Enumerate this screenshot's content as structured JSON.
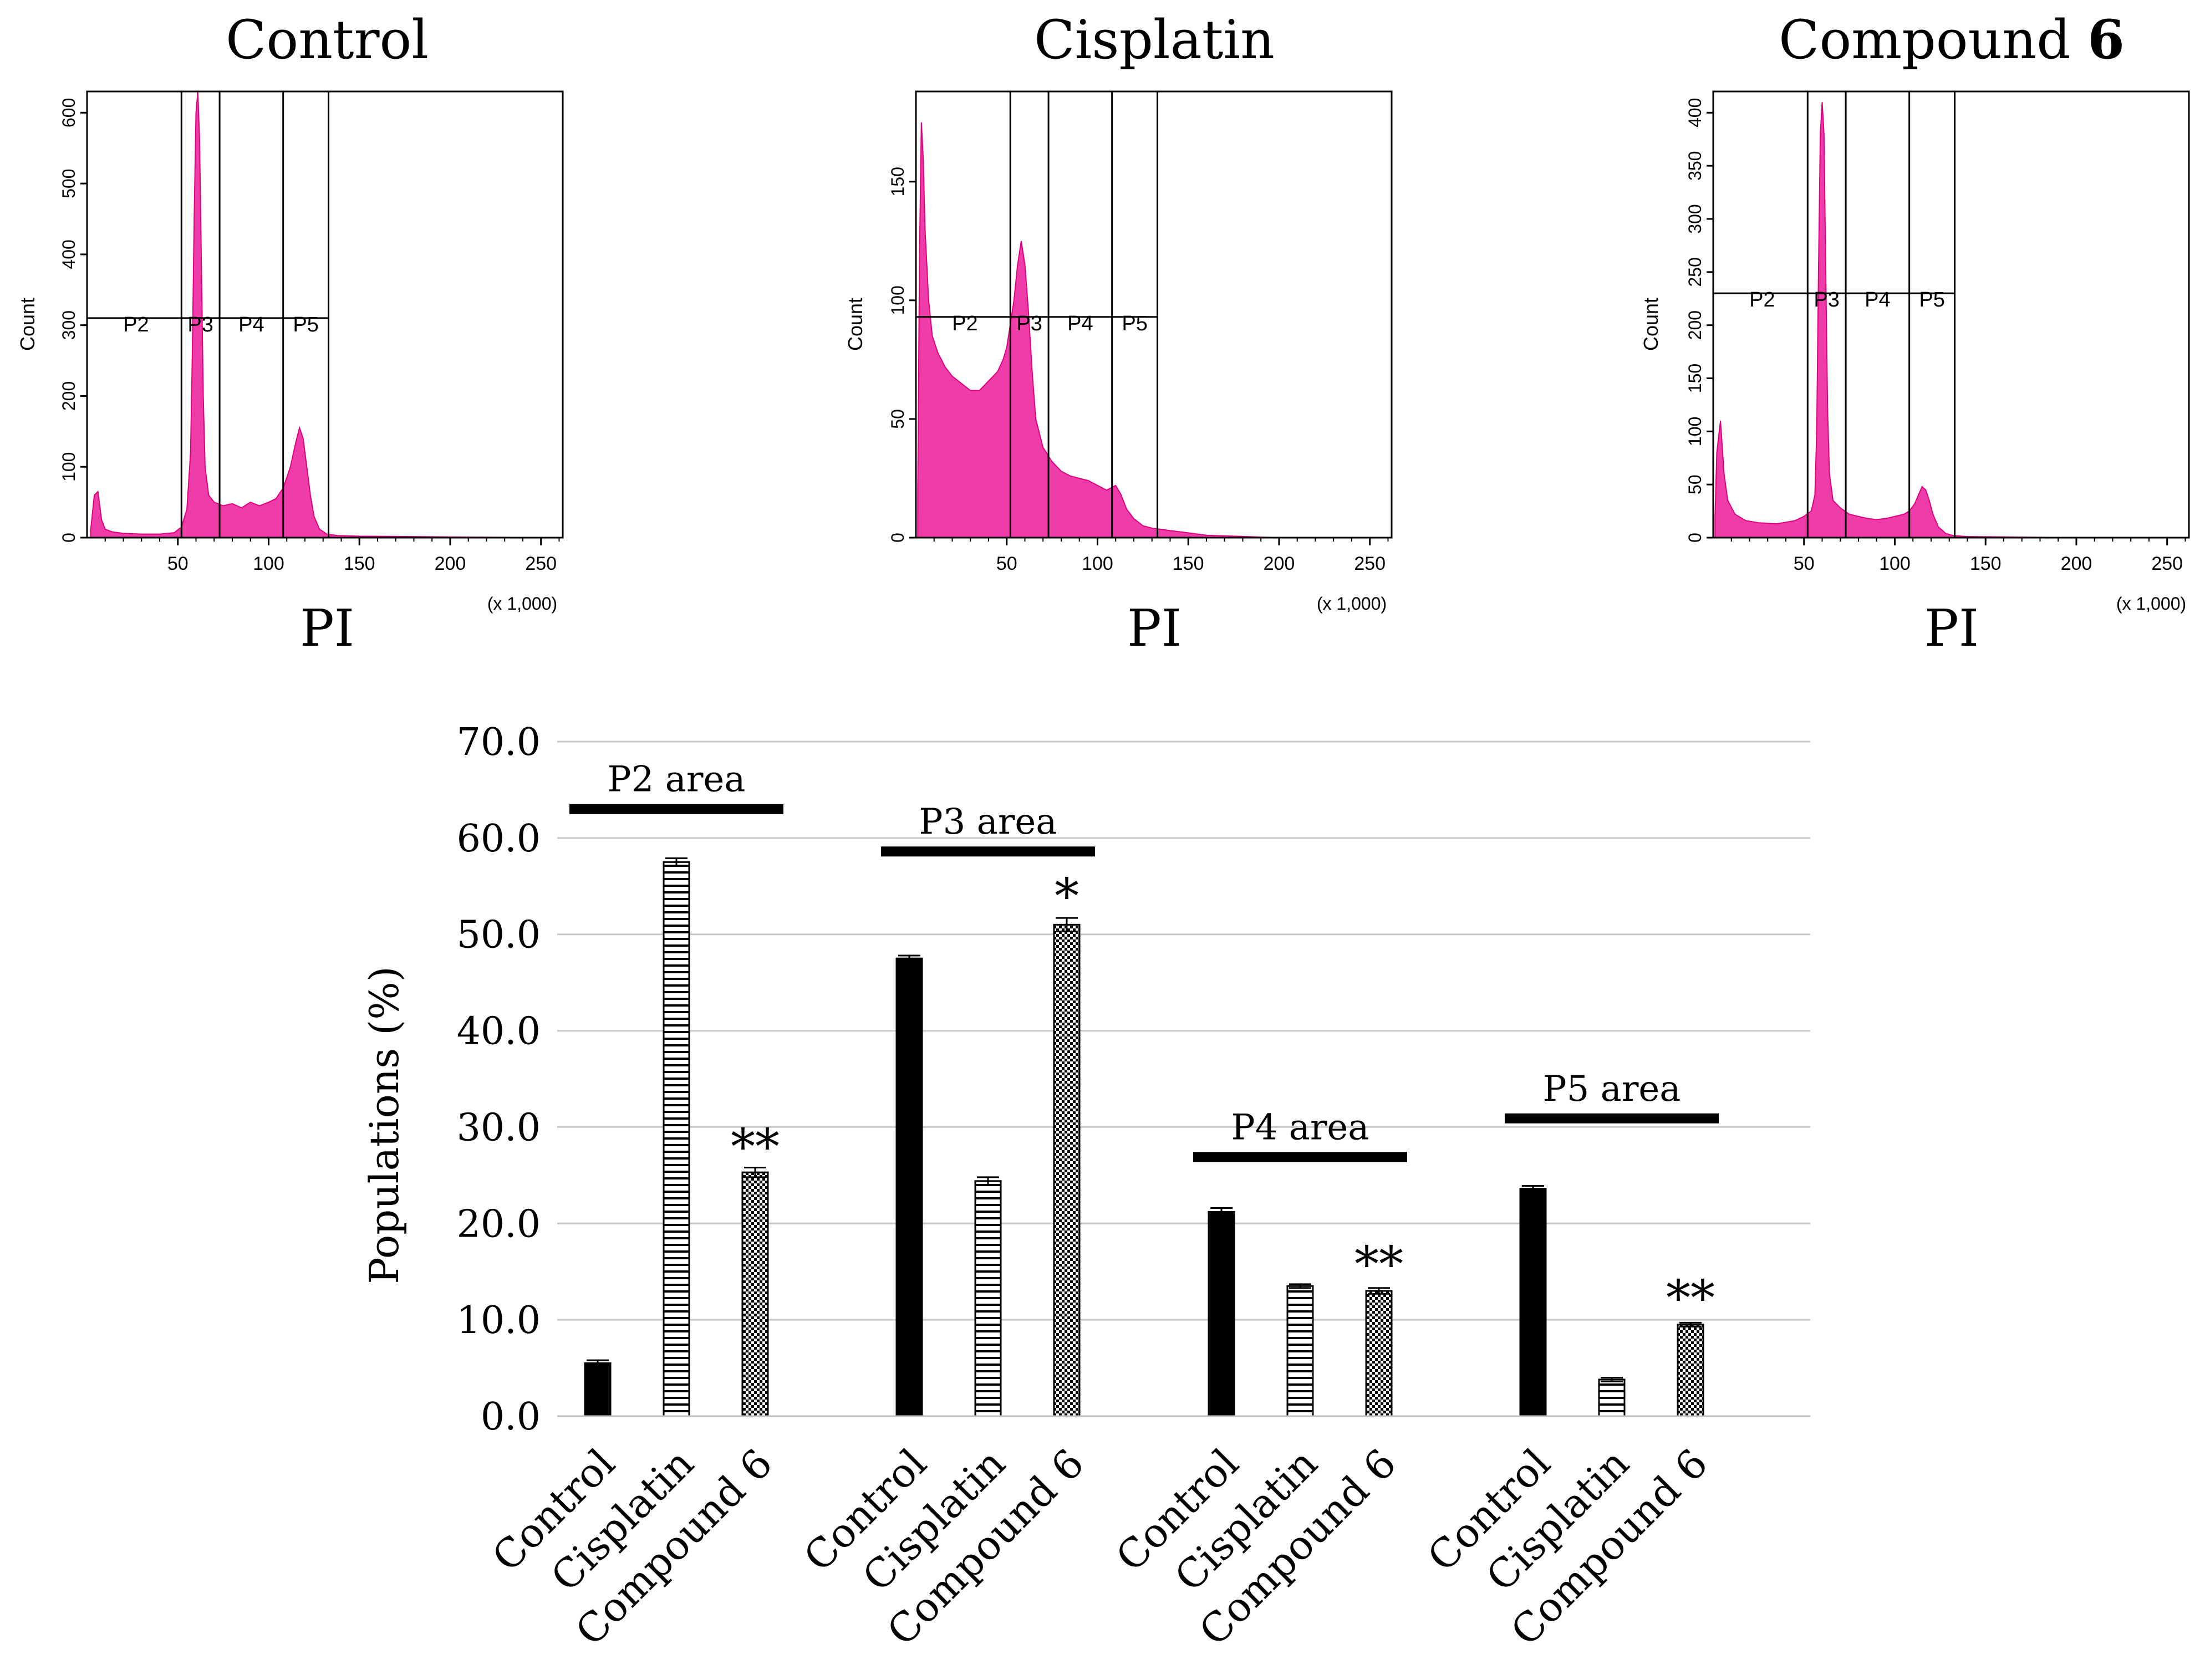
{
  "colors": {
    "histogram_fill": "#ee3ca8",
    "histogram_edge": "#e0007f",
    "axis": "#000000",
    "bar_control": "#000000",
    "bar_pattern": "#000000",
    "grid": "#c8c8c8"
  },
  "histograms": [
    {
      "title": "Control",
      "xlabel": "PI",
      "ylabel": "Count",
      "x_unit": "(x 1,000)",
      "xlim": [
        0,
        262
      ],
      "ylim": [
        0,
        630
      ],
      "xticks": [
        "50",
        "100",
        "150",
        "200",
        "250"
      ],
      "xtick_values": [
        50,
        100,
        150,
        200,
        250
      ],
      "yticks": [
        "0",
        "100",
        "200",
        "300",
        "400",
        "500",
        "600"
      ],
      "ytick_values": [
        0,
        100,
        200,
        300,
        400,
        500,
        600
      ],
      "gates": [
        52,
        73,
        108,
        133
      ],
      "gate_labels": [
        "P2",
        "P3",
        "P4",
        "P5"
      ],
      "gate_level": 310,
      "curve": [
        [
          2,
          10
        ],
        [
          4,
          60
        ],
        [
          6,
          65
        ],
        [
          8,
          25
        ],
        [
          10,
          12
        ],
        [
          14,
          8
        ],
        [
          20,
          6
        ],
        [
          30,
          5
        ],
        [
          40,
          5
        ],
        [
          48,
          7
        ],
        [
          52,
          15
        ],
        [
          55,
          40
        ],
        [
          57,
          120
        ],
        [
          58,
          260
        ],
        [
          59,
          450
        ],
        [
          60,
          600
        ],
        [
          61,
          630
        ],
        [
          62,
          560
        ],
        [
          63,
          380
        ],
        [
          64,
          200
        ],
        [
          65,
          100
        ],
        [
          67,
          60
        ],
        [
          70,
          50
        ],
        [
          75,
          45
        ],
        [
          80,
          48
        ],
        [
          85,
          42
        ],
        [
          90,
          50
        ],
        [
          95,
          45
        ],
        [
          100,
          50
        ],
        [
          104,
          55
        ],
        [
          108,
          70
        ],
        [
          112,
          100
        ],
        [
          115,
          135
        ],
        [
          117,
          155
        ],
        [
          119,
          140
        ],
        [
          121,
          100
        ],
        [
          123,
          60
        ],
        [
          125,
          30
        ],
        [
          128,
          12
        ],
        [
          132,
          5
        ],
        [
          138,
          3
        ],
        [
          150,
          2
        ],
        [
          200,
          1
        ],
        [
          260,
          0
        ]
      ]
    },
    {
      "title": "Cisplatin",
      "xlabel": "PI",
      "ylabel": "Count",
      "x_unit": "(x 1,000)",
      "xlim": [
        0,
        262
      ],
      "ylim": [
        0,
        188
      ],
      "xticks": [
        "50",
        "100",
        "150",
        "200",
        "250"
      ],
      "xtick_values": [
        50,
        100,
        150,
        200,
        250
      ],
      "yticks": [
        "0",
        "50",
        "100",
        "150"
      ],
      "ytick_values": [
        0,
        50,
        100,
        150
      ],
      "gates": [
        52,
        73,
        108,
        133
      ],
      "gate_labels": [
        "P2",
        "P3",
        "P4",
        "P5"
      ],
      "gate_level": 93,
      "curve": [
        [
          1,
          20
        ],
        [
          2,
          120
        ],
        [
          3,
          175
        ],
        [
          4,
          160
        ],
        [
          5,
          130
        ],
        [
          7,
          100
        ],
        [
          9,
          85
        ],
        [
          12,
          78
        ],
        [
          16,
          72
        ],
        [
          20,
          68
        ],
        [
          25,
          65
        ],
        [
          30,
          62
        ],
        [
          35,
          62
        ],
        [
          40,
          66
        ],
        [
          45,
          70
        ],
        [
          48,
          75
        ],
        [
          50,
          80
        ],
        [
          52,
          90
        ],
        [
          54,
          100
        ],
        [
          56,
          115
        ],
        [
          58,
          125
        ],
        [
          60,
          115
        ],
        [
          62,
          95
        ],
        [
          64,
          70
        ],
        [
          66,
          50
        ],
        [
          70,
          38
        ],
        [
          75,
          32
        ],
        [
          80,
          28
        ],
        [
          85,
          26
        ],
        [
          90,
          25
        ],
        [
          95,
          24
        ],
        [
          100,
          22
        ],
        [
          105,
          20
        ],
        [
          110,
          22
        ],
        [
          113,
          18
        ],
        [
          116,
          12
        ],
        [
          120,
          8
        ],
        [
          125,
          5
        ],
        [
          130,
          4
        ],
        [
          140,
          3
        ],
        [
          150,
          2
        ],
        [
          160,
          1
        ],
        [
          200,
          0
        ],
        [
          260,
          0
        ]
      ]
    },
    {
      "title": "Compound ",
      "title_bold": "6",
      "xlabel": "PI",
      "ylabel": "Count",
      "x_unit": "(x 1,000)",
      "xlim": [
        0,
        262
      ],
      "ylim": [
        0,
        420
      ],
      "xticks": [
        "50",
        "100",
        "150",
        "200",
        "250"
      ],
      "xtick_values": [
        50,
        100,
        150,
        200,
        250
      ],
      "yticks": [
        "0",
        "50",
        "100",
        "150",
        "200",
        "250",
        "300",
        "350",
        "400"
      ],
      "ytick_values": [
        0,
        50,
        100,
        150,
        200,
        250,
        300,
        350,
        400
      ],
      "gates": [
        52,
        73,
        108,
        133
      ],
      "gate_labels": [
        "P2",
        "P3",
        "P4",
        "P5"
      ],
      "gate_level": 230,
      "curve": [
        [
          1,
          20
        ],
        [
          2,
          80
        ],
        [
          4,
          110
        ],
        [
          6,
          60
        ],
        [
          8,
          35
        ],
        [
          12,
          22
        ],
        [
          18,
          16
        ],
        [
          25,
          14
        ],
        [
          35,
          13
        ],
        [
          45,
          16
        ],
        [
          50,
          20
        ],
        [
          54,
          25
        ],
        [
          56,
          40
        ],
        [
          57,
          100
        ],
        [
          58,
          250
        ],
        [
          59,
          380
        ],
        [
          60,
          410
        ],
        [
          61,
          380
        ],
        [
          62,
          250
        ],
        [
          63,
          120
        ],
        [
          64,
          60
        ],
        [
          66,
          35
        ],
        [
          70,
          28
        ],
        [
          75,
          22
        ],
        [
          80,
          20
        ],
        [
          85,
          18
        ],
        [
          90,
          17
        ],
        [
          95,
          18
        ],
        [
          100,
          20
        ],
        [
          105,
          22
        ],
        [
          108,
          25
        ],
        [
          111,
          32
        ],
        [
          113,
          40
        ],
        [
          115,
          48
        ],
        [
          117,
          45
        ],
        [
          119,
          35
        ],
        [
          121,
          22
        ],
        [
          124,
          10
        ],
        [
          128,
          4
        ],
        [
          132,
          2
        ],
        [
          140,
          1
        ],
        [
          200,
          0
        ],
        [
          260,
          0
        ]
      ]
    }
  ],
  "chart_data": {
    "type": "bar",
    "title": "",
    "ylabel": "Populations (%)",
    "xlabel": "",
    "ylim": [
      0,
      70
    ],
    "yticks": [
      "0.0",
      "10.0",
      "20.0",
      "30.0",
      "40.0",
      "50.0",
      "60.0",
      "70.0"
    ],
    "ytick_values": [
      0,
      10,
      20,
      30,
      40,
      50,
      60,
      70
    ],
    "grid": true,
    "group_labels": [
      "P2 area",
      "P3 area",
      "P4 area",
      "P5 area"
    ],
    "group_label_values": [
      63.0,
      58.6,
      26.9,
      30.9
    ],
    "series": [
      {
        "name": "Control",
        "pattern": "solid",
        "values": [
          5.5,
          47.5,
          21.2,
          23.6
        ],
        "errors": [
          0.3,
          0.3,
          0.4,
          0.3
        ]
      },
      {
        "name": "Cisplatin",
        "pattern": "horizontal-stripes",
        "values": [
          57.5,
          24.4,
          13.5,
          3.8
        ],
        "errors": [
          0.4,
          0.4,
          0.2,
          0.2
        ]
      },
      {
        "name": "Compound 6",
        "pattern": "checker",
        "values": [
          25.3,
          51.0,
          13.0,
          9.5
        ],
        "errors": [
          0.5,
          0.7,
          0.3,
          0.2
        ]
      }
    ],
    "category_tick_labels": [
      "Control",
      "Cisplatin",
      "Compound 6"
    ],
    "significance": [
      "**",
      "*",
      "**",
      "**"
    ],
    "significance_values": [
      28.5,
      54.5,
      16.3,
      12.8
    ]
  }
}
